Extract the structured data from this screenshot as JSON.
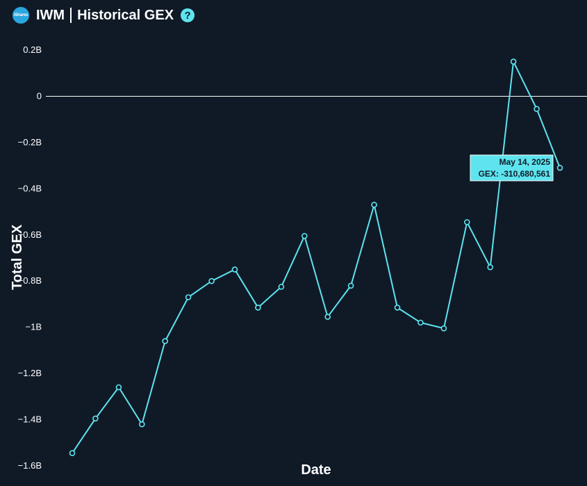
{
  "header": {
    "logo_text": "iShares",
    "ticker": "IWM",
    "title": "Historical GEX",
    "help_icon": "question-circle-icon"
  },
  "colors": {
    "background": "#101a27",
    "line": "#5ee4ee",
    "zero_line": "#ffffff",
    "tooltip_bg": "#5ee4ee"
  },
  "chart_data": {
    "type": "line",
    "title": "Historical GEX",
    "xlabel": "Date",
    "ylabel": "Total GEX",
    "ylim": [
      -1.6,
      0.2
    ],
    "y_unit": "B",
    "yticks": [
      "0.2B",
      "0",
      "−0.2B",
      "−0.4B",
      "−0.6B",
      "−0.8B",
      "−1B",
      "−1.2B",
      "−1.4B",
      "−1.6B"
    ],
    "ytick_values": [
      0.2,
      0,
      -0.2,
      -0.4,
      -0.6,
      -0.8,
      -1,
      -1.2,
      -1.4,
      -1.6
    ],
    "grid": false,
    "zero_line": true,
    "series": [
      {
        "values": [
          -1.545,
          -1.395,
          -1.26,
          -1.42,
          -1.06,
          -0.87,
          -0.8,
          -0.75,
          -0.915,
          -0.825,
          -0.605,
          -0.955,
          -0.82,
          -0.47,
          -0.915,
          -0.98,
          -1.005,
          -0.545,
          -0.74,
          0.15,
          -0.055,
          -0.31
        ]
      }
    ],
    "tooltip": {
      "date": "May 14, 2025",
      "label": "GEX: -310,680,561"
    }
  }
}
